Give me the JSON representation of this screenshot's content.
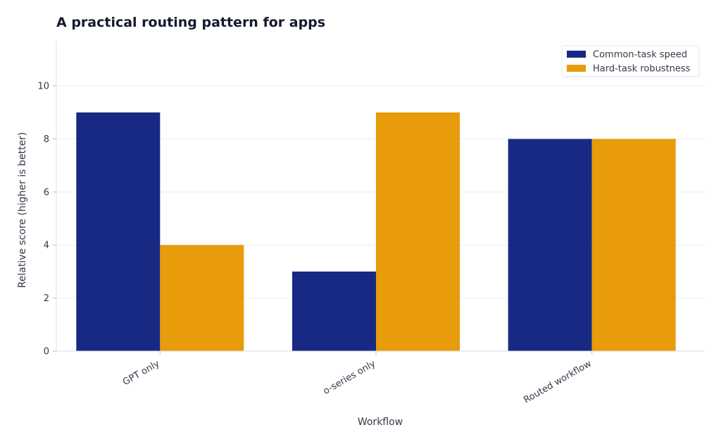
{
  "chart_data": {
    "type": "bar",
    "title": "A practical routing pattern for apps",
    "xlabel": "Workflow",
    "ylabel": "Relative score (higher is better)",
    "categories": [
      "GPT only",
      "o-series only",
      "Routed workflow"
    ],
    "series": [
      {
        "name": "Common-task speed",
        "values": [
          9,
          3,
          8
        ],
        "color": "#172983"
      },
      {
        "name": "Hard-task robustness",
        "values": [
          4,
          9,
          8
        ],
        "color": "#e89b0b"
      }
    ],
    "ylim": [
      0,
      11.7
    ],
    "yticks": [
      0,
      2,
      4,
      6,
      8,
      10
    ],
    "grid": true,
    "legend_position": "top-right"
  }
}
